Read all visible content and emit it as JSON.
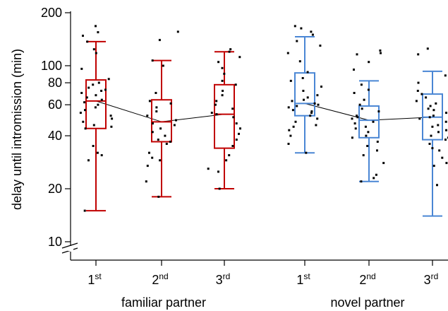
{
  "chart_data": {
    "type": "box",
    "scale": "log",
    "ylabel": "delay until intromission (min)",
    "ylim": [
      9,
      200
    ],
    "yticks": [
      10,
      20,
      40,
      60,
      80,
      100,
      200
    ],
    "ytick_labels": [
      "10",
      "20",
      "40",
      "60",
      "80",
      "100",
      "200"
    ],
    "axis_break": true,
    "groups": [
      {
        "label": "familiar partner",
        "color": "#c00000"
      },
      {
        "label": "novel partner",
        "color": "#4a86d4"
      }
    ],
    "categories": [
      {
        "label": "1",
        "sup": "st",
        "group": 0,
        "min": 15,
        "q1": 44,
        "median": 63,
        "q3": 83,
        "max": 137
      },
      {
        "label": "2",
        "sup": "nd",
        "group": 0,
        "min": 18,
        "q1": 37,
        "median": 48,
        "q3": 64,
        "max": 107
      },
      {
        "label": "3",
        "sup": "rd",
        "group": 0,
        "min": 20,
        "q1": 34,
        "median": 53,
        "q3": 78,
        "max": 120
      },
      {
        "label": "1",
        "sup": "st",
        "group": 1,
        "min": 32,
        "q1": 52,
        "median": 61,
        "q3": 91,
        "max": 146
      },
      {
        "label": "2",
        "sup": "nd",
        "group": 1,
        "min": 22,
        "q1": 39,
        "median": 49,
        "q3": 59,
        "max": 82
      },
      {
        "label": "3",
        "sup": "rd",
        "group": 1,
        "min": 14,
        "q1": 38,
        "median": 51,
        "q3": 69,
        "max": 93
      }
    ],
    "mean_line": [
      {
        "group": 0,
        "values": [
          63,
          48,
          53
        ]
      },
      {
        "group": 1,
        "values": [
          61,
          49,
          51
        ]
      }
    ],
    "points": [
      [
        168,
        155,
        148,
        137,
        124,
        118,
        96,
        84,
        80,
        78,
        75,
        73,
        72,
        70,
        68,
        66,
        64,
        62,
        60,
        58,
        56,
        54,
        52,
        50,
        48,
        46,
        45,
        44,
        35,
        32,
        31,
        29,
        15
      ],
      [
        156,
        140,
        107,
        100,
        70,
        63,
        61,
        58,
        55,
        52,
        49,
        47,
        46,
        44,
        42,
        40,
        38,
        37,
        36,
        32,
        30,
        29,
        27,
        22,
        18
      ],
      [
        124,
        120,
        112,
        105,
        97,
        90,
        82,
        78,
        72,
        68,
        63,
        60,
        57,
        54,
        53,
        51,
        47,
        44,
        41,
        38,
        35,
        31,
        29,
        26,
        25,
        20
      ],
      [
        168,
        163,
        156,
        150,
        138,
        130,
        118,
        106,
        92,
        85,
        82,
        76,
        72,
        68,
        66,
        64,
        63,
        61,
        60,
        59,
        58,
        56,
        55,
        54,
        52,
        50,
        48,
        46,
        45,
        43,
        40,
        36,
        32
      ],
      [
        122,
        118,
        116,
        105,
        95,
        78,
        73,
        70,
        64,
        60,
        57,
        55,
        52,
        51,
        50,
        48,
        47,
        45,
        44,
        42,
        40,
        39,
        37,
        35,
        33,
        31,
        28,
        24,
        23,
        22
      ],
      [
        125,
        116,
        88,
        80,
        72,
        69,
        66,
        63,
        61,
        59,
        57,
        56,
        54,
        52,
        51,
        50,
        48,
        46,
        45,
        43,
        42,
        40,
        39,
        38,
        36,
        34,
        33,
        30,
        28,
        27,
        25,
        21
      ]
    ]
  }
}
